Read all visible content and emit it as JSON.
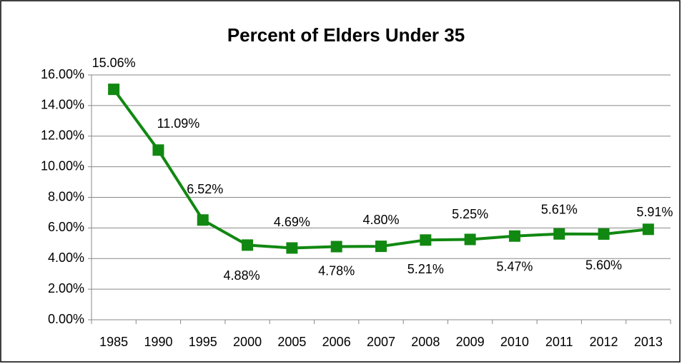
{
  "chart_data": {
    "type": "line",
    "title": "Percent of Elders Under 35",
    "categories": [
      "1985",
      "1990",
      "1995",
      "2000",
      "2005",
      "2006",
      "2007",
      "2008",
      "2009",
      "2010",
      "2011",
      "2012",
      "2013"
    ],
    "series": [
      {
        "name": "Percent of Elders Under 35",
        "color": "#118811",
        "values": [
          15.06,
          11.09,
          6.52,
          4.88,
          4.69,
          4.78,
          4.8,
          5.21,
          5.25,
          5.47,
          5.61,
          5.6,
          5.91
        ],
        "value_labels": [
          "15.06%",
          "11.09%",
          "6.52%",
          "4.88%",
          "4.69%",
          "4.78%",
          "4.80%",
          "5.21%",
          "5.25%",
          "5.47%",
          "5.61%",
          "5.60%",
          "5.91%"
        ]
      }
    ],
    "ylim": [
      0,
      16
    ],
    "yticks": [
      {
        "value": 0,
        "label": "0.00%"
      },
      {
        "value": 2,
        "label": "2.00%"
      },
      {
        "value": 4,
        "label": "4.00%"
      },
      {
        "value": 6,
        "label": "6.00%"
      },
      {
        "value": 8,
        "label": "8.00%"
      },
      {
        "value": 10,
        "label": "10.00%"
      },
      {
        "value": 12,
        "label": "12.00%"
      },
      {
        "value": 14,
        "label": "14.00%"
      },
      {
        "value": 16,
        "label": "16.00%"
      }
    ],
    "grid": true,
    "legend": false
  }
}
